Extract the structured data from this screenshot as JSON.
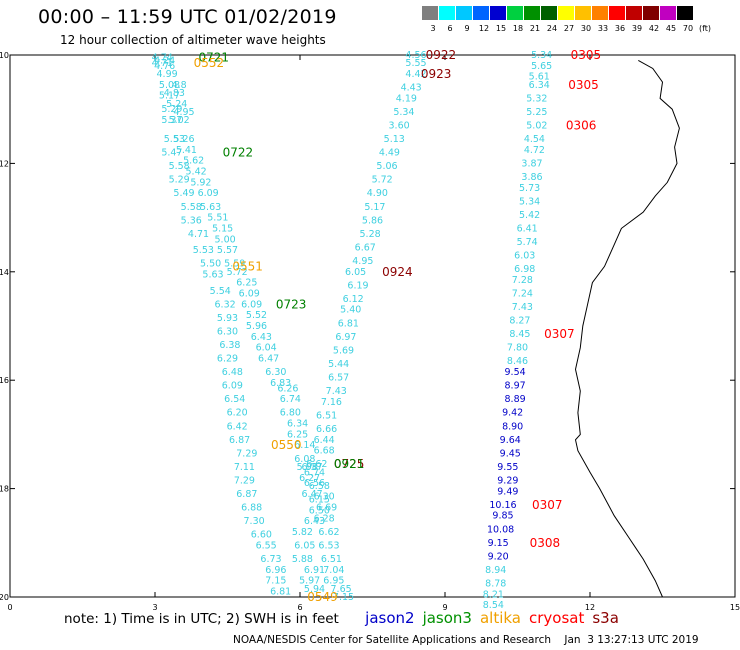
{
  "header": {
    "title": "00:00 – 11:59 UTC 01/02/2019",
    "subtitle": "12 hour collection of altimeter wave heights"
  },
  "legend": {
    "labels": [
      "3",
      "6",
      "9",
      "12",
      "15",
      "18",
      "21",
      "24",
      "27",
      "30",
      "33",
      "36",
      "39",
      "42",
      "45",
      "70",
      "(ft)"
    ],
    "colors": [
      "#7f7f7f",
      "#00ffff",
      "#00c8ff",
      "#0064ff",
      "#0000d0",
      "#00d040",
      "#009000",
      "#006000",
      "#ffff00",
      "#ffc000",
      "#ff8000",
      "#ff0000",
      "#c00000",
      "#800000",
      "#c000c0",
      "#000000"
    ]
  },
  "map": {
    "x_ticks": [
      "0",
      "3",
      "6",
      "9",
      "12",
      "15"
    ],
    "y_ticks": [
      "-10",
      "-12",
      "-14",
      "-16",
      "-18",
      "-20"
    ],
    "xlim": [
      0,
      15
    ],
    "ylim": [
      -20,
      -10
    ],
    "coastline": [
      [
        13.0,
        -10.1
      ],
      [
        13.3,
        -10.25
      ],
      [
        13.5,
        -10.5
      ],
      [
        13.45,
        -10.8
      ],
      [
        13.7,
        -11.0
      ],
      [
        13.85,
        -11.35
      ],
      [
        13.75,
        -11.7
      ],
      [
        13.8,
        -12.0
      ],
      [
        13.6,
        -12.35
      ],
      [
        13.35,
        -12.6
      ],
      [
        13.1,
        -12.9
      ],
      [
        12.65,
        -13.2
      ],
      [
        12.5,
        -13.5
      ],
      [
        12.3,
        -13.9
      ],
      [
        12.05,
        -14.2
      ],
      [
        11.95,
        -14.6
      ],
      [
        11.85,
        -15.0
      ],
      [
        11.8,
        -15.4
      ],
      [
        11.7,
        -15.8
      ],
      [
        11.8,
        -16.2
      ],
      [
        11.75,
        -16.6
      ],
      [
        11.8,
        -17.0
      ],
      [
        11.7,
        -17.1
      ],
      [
        11.75,
        -17.3
      ],
      [
        12.0,
        -17.7
      ],
      [
        12.2,
        -18.0
      ],
      [
        12.5,
        -18.5
      ],
      [
        12.8,
        -18.9
      ],
      [
        13.1,
        -19.3
      ],
      [
        13.35,
        -19.7
      ],
      [
        13.5,
        -20.0
      ]
    ]
  },
  "tracks": [
    {
      "color": "#3fd0e0",
      "points": [
        [
          3.15,
          -10.05,
          "4.74"
        ],
        [
          3.2,
          -10.1,
          "4.24"
        ],
        [
          3.15,
          -10.15,
          "4.71"
        ],
        [
          3.2,
          -10.2,
          "4.76"
        ],
        [
          3.25,
          -10.35,
          "4.99"
        ],
        [
          3.3,
          -10.55,
          "5.08"
        ],
        [
          3.5,
          -10.55,
          "4.8"
        ],
        [
          3.4,
          -10.7,
          "4.83"
        ],
        [
          3.3,
          -10.75,
          "5.17"
        ],
        [
          3.45,
          -10.9,
          "5.24"
        ],
        [
          3.35,
          -11.0,
          "5.29"
        ],
        [
          3.6,
          -11.05,
          "4.95"
        ],
        [
          3.35,
          -11.2,
          "5.37"
        ],
        [
          3.5,
          -11.2,
          "5.02"
        ],
        [
          3.4,
          -11.55,
          "5.53"
        ],
        [
          3.6,
          -11.55,
          "5.26"
        ],
        [
          3.35,
          -11.8,
          "5.47"
        ],
        [
          3.65,
          -11.75,
          "5.41"
        ],
        [
          3.8,
          -11.95,
          "5.62"
        ],
        [
          3.5,
          -12.05,
          "5.58"
        ],
        [
          3.85,
          -12.15,
          "5.42"
        ],
        [
          3.5,
          -12.3,
          "5.29"
        ],
        [
          3.95,
          -12.35,
          "5.92"
        ],
        [
          3.6,
          -12.55,
          "5.49"
        ],
        [
          4.1,
          -12.55,
          "6.09"
        ],
        [
          3.75,
          -12.8,
          "5.58"
        ],
        [
          4.15,
          -12.8,
          "5.63"
        ],
        [
          3.75,
          -13.05,
          "5.36"
        ],
        [
          4.3,
          -13.0,
          "5.51"
        ],
        [
          4.4,
          -13.2,
          "5.15"
        ],
        [
          3.9,
          -13.3,
          "4.71"
        ],
        [
          4.45,
          -13.4,
          "5.00"
        ],
        [
          4.0,
          -13.6,
          "5.53"
        ],
        [
          4.5,
          -13.6,
          "5.57"
        ],
        [
          4.15,
          -13.85,
          "5.50"
        ],
        [
          4.65,
          -13.85,
          "5.59"
        ],
        [
          4.2,
          -14.05,
          "5.63"
        ],
        [
          4.7,
          -14.0,
          "5.72"
        ],
        [
          4.9,
          -14.2,
          "6.25"
        ],
        [
          4.35,
          -14.35,
          "5.54"
        ],
        [
          4.95,
          -14.4,
          "6.09"
        ],
        [
          4.45,
          -14.6,
          "6.32"
        ],
        [
          5.0,
          -14.6,
          "6.09"
        ],
        [
          5.1,
          -14.8,
          "5.52"
        ],
        [
          4.5,
          -14.85,
          "5.93"
        ],
        [
          5.1,
          -15.0,
          "5.96"
        ],
        [
          4.5,
          -15.1,
          "6.30"
        ],
        [
          5.2,
          -15.2,
          "6.43"
        ],
        [
          4.55,
          -15.35,
          "6.38"
        ],
        [
          5.3,
          -15.4,
          "6.04"
        ],
        [
          4.5,
          -15.6,
          "6.29"
        ],
        [
          5.35,
          -15.6,
          "6.47"
        ],
        [
          4.6,
          -15.85,
          "6.48"
        ],
        [
          5.5,
          -15.85,
          "6.30"
        ],
        [
          5.6,
          -16.05,
          "6.83"
        ],
        [
          4.6,
          -16.1,
          "6.09"
        ],
        [
          5.75,
          -16.15,
          "6.26"
        ],
        [
          4.65,
          -16.35,
          "6.54"
        ],
        [
          5.8,
          -16.35,
          "6.74"
        ],
        [
          4.7,
          -16.6,
          "6.20"
        ],
        [
          5.8,
          -16.6,
          "6.80"
        ],
        [
          5.95,
          -16.8,
          "6.34"
        ],
        [
          4.7,
          -16.85,
          "6.42"
        ],
        [
          5.95,
          -17.0,
          "6.25"
        ],
        [
          4.75,
          -17.1,
          "6.87"
        ],
        [
          6.1,
          -17.2,
          "6.14"
        ],
        [
          4.9,
          -17.35,
          "7.29"
        ],
        [
          6.1,
          -17.45,
          "6.08"
        ],
        [
          4.85,
          -17.6,
          "7.11"
        ],
        [
          6.15,
          -17.6,
          "5.98"
        ],
        [
          6.25,
          -17.6,
          "6.37"
        ],
        [
          6.2,
          -17.8,
          "6.27"
        ],
        [
          4.85,
          -17.85,
          "7.29"
        ],
        [
          6.3,
          -17.9,
          "6.56"
        ],
        [
          6.25,
          -18.1,
          "6.47"
        ],
        [
          4.9,
          -18.1,
          "6.87"
        ],
        [
          6.4,
          -18.2,
          "6.15"
        ],
        [
          5.0,
          -18.35,
          "6.88"
        ],
        [
          6.4,
          -18.4,
          "6.50"
        ],
        [
          5.05,
          -18.6,
          "7.30"
        ],
        [
          6.3,
          -18.6,
          "6.43"
        ],
        [
          5.2,
          -18.85,
          "6.60"
        ],
        [
          6.05,
          -18.8,
          "5.82"
        ],
        [
          5.3,
          -19.05,
          "6.55"
        ],
        [
          6.1,
          -19.05,
          "6.05"
        ],
        [
          5.4,
          -19.3,
          "6.73"
        ],
        [
          6.05,
          -19.3,
          "5.88"
        ],
        [
          5.5,
          -19.5,
          "6.96"
        ],
        [
          6.3,
          -19.5,
          "6.91"
        ],
        [
          5.5,
          -19.7,
          "7.15"
        ],
        [
          6.2,
          -19.7,
          "5.97"
        ],
        [
          5.6,
          -19.9,
          "6.81"
        ],
        [
          6.3,
          -19.85,
          "5.94"
        ]
      ]
    },
    {
      "color": "#3fd0e0",
      "points": [
        [
          8.4,
          -10.0,
          "4.56"
        ],
        [
          8.4,
          -10.15,
          "5.55"
        ],
        [
          8.4,
          -10.35,
          "4.42"
        ],
        [
          8.3,
          -10.6,
          "4.43"
        ],
        [
          8.2,
          -10.8,
          "4.19"
        ],
        [
          8.15,
          -11.05,
          "5.34"
        ],
        [
          8.05,
          -11.3,
          "3.60"
        ],
        [
          7.95,
          -11.55,
          "5.13"
        ],
        [
          7.85,
          -11.8,
          "4.49"
        ],
        [
          7.8,
          -12.05,
          "5.06"
        ],
        [
          7.7,
          -12.3,
          "5.72"
        ],
        [
          7.6,
          -12.55,
          "4.90"
        ],
        [
          7.55,
          -12.8,
          "5.17"
        ],
        [
          7.5,
          -13.05,
          "5.86"
        ],
        [
          7.45,
          -13.3,
          "5.28"
        ],
        [
          7.35,
          -13.55,
          "6.67"
        ],
        [
          7.3,
          -13.8,
          "4.95"
        ],
        [
          7.15,
          -14.0,
          "6.05"
        ],
        [
          7.2,
          -14.25,
          "6.19"
        ],
        [
          7.1,
          -14.5,
          "6.12"
        ],
        [
          7.05,
          -14.7,
          "5.40"
        ],
        [
          7.0,
          -14.95,
          "6.81"
        ],
        [
          6.95,
          -15.2,
          "6.97"
        ],
        [
          6.9,
          -15.45,
          "5.69"
        ],
        [
          6.8,
          -15.7,
          "5.44"
        ],
        [
          6.8,
          -15.95,
          "6.57"
        ],
        [
          6.75,
          -16.2,
          "7.43"
        ],
        [
          6.65,
          -16.4,
          "7.16"
        ],
        [
          6.55,
          -16.65,
          "6.51"
        ],
        [
          6.55,
          -16.9,
          "6.66"
        ],
        [
          6.5,
          -17.1,
          "6.44"
        ],
        [
          6.5,
          -17.3,
          "6.68"
        ],
        [
          6.35,
          -17.55,
          "6.62"
        ],
        [
          6.3,
          -17.7,
          "6.74"
        ],
        [
          6.4,
          -17.95,
          "6.58"
        ],
        [
          6.5,
          -18.15,
          "6.30"
        ],
        [
          6.55,
          -18.35,
          "6.69"
        ],
        [
          6.5,
          -18.55,
          "6.28"
        ],
        [
          6.6,
          -18.8,
          "6.62"
        ],
        [
          6.6,
          -19.05,
          "6.53"
        ],
        [
          6.65,
          -19.3,
          "6.51"
        ],
        [
          6.7,
          -19.5,
          "7.04"
        ],
        [
          6.7,
          -19.7,
          "6.95"
        ],
        [
          6.85,
          -19.85,
          "7.65"
        ],
        [
          6.9,
          -20.0,
          "7.15"
        ]
      ]
    },
    {
      "color": "#3fd0e0",
      "points": [
        [
          11.0,
          -10.0,
          "5.34"
        ],
        [
          11.0,
          -10.2,
          "5.65"
        ],
        [
          10.95,
          -10.4,
          "5.61"
        ],
        [
          10.95,
          -10.55,
          "6.34"
        ],
        [
          10.9,
          -10.8,
          "5.32"
        ],
        [
          10.9,
          -11.05,
          "5.25"
        ],
        [
          10.9,
          -11.3,
          "5.02"
        ],
        [
          10.85,
          -11.55,
          "4.54"
        ],
        [
          10.85,
          -11.75,
          "4.72"
        ],
        [
          10.8,
          -12.0,
          "3.87"
        ],
        [
          10.8,
          -12.25,
          "3.86"
        ],
        [
          10.75,
          -12.45,
          "5.73"
        ],
        [
          10.75,
          -12.7,
          "5.34"
        ],
        [
          10.75,
          -12.95,
          "5.42"
        ],
        [
          10.7,
          -13.2,
          "6.41"
        ],
        [
          10.7,
          -13.45,
          "5.74"
        ],
        [
          10.65,
          -13.7,
          "6.03"
        ],
        [
          10.65,
          -13.95,
          "6.98"
        ],
        [
          10.6,
          -14.15,
          "7.28"
        ],
        [
          10.6,
          -14.4,
          "7.24"
        ],
        [
          10.6,
          -14.65,
          "7.43"
        ],
        [
          10.55,
          -14.9,
          "8.27"
        ],
        [
          10.55,
          -15.15,
          "8.45"
        ],
        [
          10.5,
          -15.4,
          "7.80"
        ],
        [
          10.5,
          -15.65,
          "8.46"
        ]
      ]
    },
    {
      "color": "#0000c8",
      "points": [
        [
          10.45,
          -15.85,
          "9.54"
        ],
        [
          10.45,
          -16.1,
          "8.97"
        ],
        [
          10.45,
          -16.35,
          "8.89"
        ],
        [
          10.4,
          -16.6,
          "9.42"
        ],
        [
          10.4,
          -16.85,
          "8.90"
        ],
        [
          10.35,
          -17.1,
          "9.64"
        ],
        [
          10.35,
          -17.35,
          "9.45"
        ],
        [
          10.3,
          -17.6,
          "9.55"
        ],
        [
          10.3,
          -17.85,
          "9.29"
        ],
        [
          10.3,
          -18.05,
          "9.49"
        ],
        [
          10.2,
          -18.3,
          "10.16"
        ],
        [
          10.2,
          -18.5,
          "9.85"
        ],
        [
          10.15,
          -18.75,
          "10.08"
        ],
        [
          10.1,
          -19.0,
          "9.15"
        ],
        [
          10.1,
          -19.25,
          "9.20"
        ]
      ]
    },
    {
      "color": "#3fd0e0",
      "points": [
        [
          10.05,
          -19.5,
          "8.94"
        ],
        [
          10.05,
          -19.75,
          "8.78"
        ],
        [
          10.0,
          -19.95,
          "8.21"
        ],
        [
          10.0,
          -20.15,
          "8.54"
        ]
      ]
    }
  ],
  "time_labels": [
    {
      "x": 3.9,
      "y": -10.05,
      "text": "0721",
      "color": "#008000"
    },
    {
      "x": 3.8,
      "y": -10.15,
      "text": "0552",
      "color": "#f0a000"
    },
    {
      "x": 4.4,
      "y": -11.8,
      "text": "0722",
      "color": "#008000"
    },
    {
      "x": 4.6,
      "y": -13.9,
      "text": "0551",
      "color": "#f0a000"
    },
    {
      "x": 5.5,
      "y": -14.6,
      "text": "0723",
      "color": "#008000"
    },
    {
      "x": 5.4,
      "y": -17.2,
      "text": "0550",
      "color": "#f0a000"
    },
    {
      "x": 6.7,
      "y": -17.55,
      "text": "0725",
      "color": "#8b0000"
    },
    {
      "x": 6.7,
      "y": -17.55,
      "text": "0921",
      "color": "#008000"
    },
    {
      "x": 6.15,
      "y": -20.0,
      "text": "0549",
      "color": "#f0a000"
    },
    {
      "x": 8.6,
      "y": -10.0,
      "text": "0922",
      "color": "#8b0000"
    },
    {
      "x": 8.5,
      "y": -10.35,
      "text": "0923",
      "color": "#8b0000"
    },
    {
      "x": 7.7,
      "y": -14.0,
      "text": "0924",
      "color": "#8b0000"
    },
    {
      "x": 11.6,
      "y": -10.0,
      "text": "0305",
      "color": "#ff0000"
    },
    {
      "x": 11.55,
      "y": -10.55,
      "text": "0305",
      "color": "#ff0000"
    },
    {
      "x": 11.5,
      "y": -11.3,
      "text": "0306",
      "color": "#ff0000"
    },
    {
      "x": 11.05,
      "y": -15.15,
      "text": "0307",
      "color": "#ff0000"
    },
    {
      "x": 10.8,
      "y": -18.3,
      "text": "0307",
      "color": "#ff0000"
    },
    {
      "x": 10.75,
      "y": -19.0,
      "text": "0308",
      "color": "#ff0000"
    }
  ],
  "footer": {
    "note": "note: 1) Time is in UTC; 2) SWH is in feet",
    "satellites": [
      {
        "name": "jason2",
        "color": "#0000c8"
      },
      {
        "name": "jason3",
        "color": "#009000"
      },
      {
        "name": "altika",
        "color": "#f0a000"
      },
      {
        "name": "cryosat",
        "color": "#ff0000"
      },
      {
        "name": "s3a",
        "color": "#8b0000"
      }
    ],
    "credit": "NOAA/NESDIS Center for Satellite Applications and Research    Jan  3 13:27:13 UTC 2019"
  }
}
